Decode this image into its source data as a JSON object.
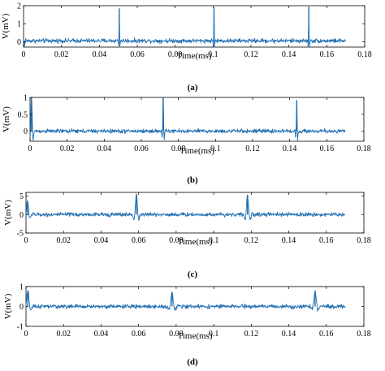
{
  "figure": {
    "panels": [
      {
        "label": "(a)"
      },
      {
        "label": "(b)"
      },
      {
        "label": "(c)"
      },
      {
        "label": "(d)"
      }
    ]
  },
  "colors": {
    "signal": "#1f6fb2",
    "axes": "#000000"
  },
  "chart_data": [
    {
      "type": "line",
      "label": "(a)",
      "xlabel": "Time(ms)",
      "ylabel": "V(mV)",
      "xlim": [
        0,
        0.18
      ],
      "ylim": [
        -0.3,
        2
      ],
      "xticks": [
        "0",
        "0.02",
        "0.04",
        "0.06",
        "0.08",
        "0.1",
        "0.12",
        "0.14",
        "0.16",
        "0.18"
      ],
      "yticks": [
        {
          "value": 0,
          "label": "0"
        },
        {
          "value": 1,
          "label": "1"
        },
        {
          "value": 2,
          "label": "2"
        }
      ],
      "grid": false,
      "series": [
        {
          "x_range": [
            0,
            0.17
          ],
          "baseline": 0.05,
          "noise_amplitude": 0.18,
          "spikes": [
            {
              "x": 0.0005,
              "y": -0.25,
              "width": 0.0006
            },
            {
              "x": 0.0505,
              "y": 1.8,
              "width": 0.0003
            },
            {
              "x": 0.1005,
              "y": 1.8,
              "width": 0.0003
            },
            {
              "x": 0.1505,
              "y": 1.9,
              "width": 0.0003
            }
          ]
        }
      ]
    },
    {
      "type": "line",
      "label": "(b)",
      "xlabel": "Time(ms)",
      "ylabel": "V(mV)",
      "xlim": [
        0,
        0.18
      ],
      "ylim": [
        -0.3,
        1
      ],
      "xticks": [
        "0",
        "0.02",
        "0.04",
        "0.06",
        "0.08",
        "0.1",
        "0.12",
        "0.14",
        "0.16",
        "0.18"
      ],
      "yticks": [
        {
          "value": 0,
          "label": "0"
        },
        {
          "value": 0.5,
          "label": "0.5"
        },
        {
          "value": 1,
          "label": "1"
        }
      ],
      "grid": false,
      "series": [
        {
          "x_range": [
            0,
            0.17
          ],
          "baseline": 0.0,
          "noise_amplitude": 0.09,
          "spikes": [
            {
              "x": 0.0008,
              "y": 1.0,
              "width": 0.0008
            },
            {
              "x": 0.0718,
              "y": 1.05,
              "width": 0.0005
            },
            {
              "x": 0.1438,
              "y": 0.9,
              "width": 0.0005
            }
          ]
        }
      ]
    },
    {
      "type": "line",
      "label": "(c)",
      "xlabel": "Time(ms)",
      "ylabel": "V(mV)",
      "xlim": [
        0,
        0.18
      ],
      "ylim": [
        -5,
        6
      ],
      "xticks": [
        "0",
        "0.02",
        "0.04",
        "0.06",
        "0.08",
        "0.1",
        "0.12",
        "0.14",
        "0.16",
        "0.18"
      ],
      "yticks": [
        {
          "value": -5,
          "label": "-5"
        },
        {
          "value": 0,
          "label": "0"
        },
        {
          "value": 5,
          "label": "5"
        }
      ],
      "grid": false,
      "series": [
        {
          "x_range": [
            0,
            0.17
          ],
          "baseline": 0.0,
          "noise_amplitude": 0.8,
          "spikes": [
            {
              "x": 0.0008,
              "y": 3.5,
              "width": 0.0012
            },
            {
              "x": 0.0588,
              "y": 5.6,
              "width": 0.0012
            },
            {
              "x": 0.118,
              "y": 5.3,
              "width": 0.0012
            }
          ]
        }
      ]
    },
    {
      "type": "line",
      "label": "(d)",
      "xlabel": "Time(ms)",
      "ylabel": "V(mV)",
      "xlim": [
        0,
        0.18
      ],
      "ylim": [
        -1,
        1
      ],
      "xticks": [
        "0",
        "0.02",
        "0.04",
        "0.06",
        "0.08",
        "0.1",
        "0.12",
        "0.14",
        "0.16",
        "0.18"
      ],
      "yticks": [
        {
          "value": -1,
          "label": "-1"
        },
        {
          "value": 0,
          "label": "0"
        },
        {
          "value": 1,
          "label": "1"
        }
      ],
      "grid": false,
      "series": [
        {
          "x_range": [
            0,
            0.17
          ],
          "baseline": 0.0,
          "noise_amplitude": 0.15,
          "spikes": [
            {
              "x": 0.001,
              "y": 0.75,
              "width": 0.0015
            },
            {
              "x": 0.0778,
              "y": 0.72,
              "width": 0.0015
            },
            {
              "x": 0.154,
              "y": 0.72,
              "width": 0.0015
            }
          ]
        }
      ]
    }
  ]
}
